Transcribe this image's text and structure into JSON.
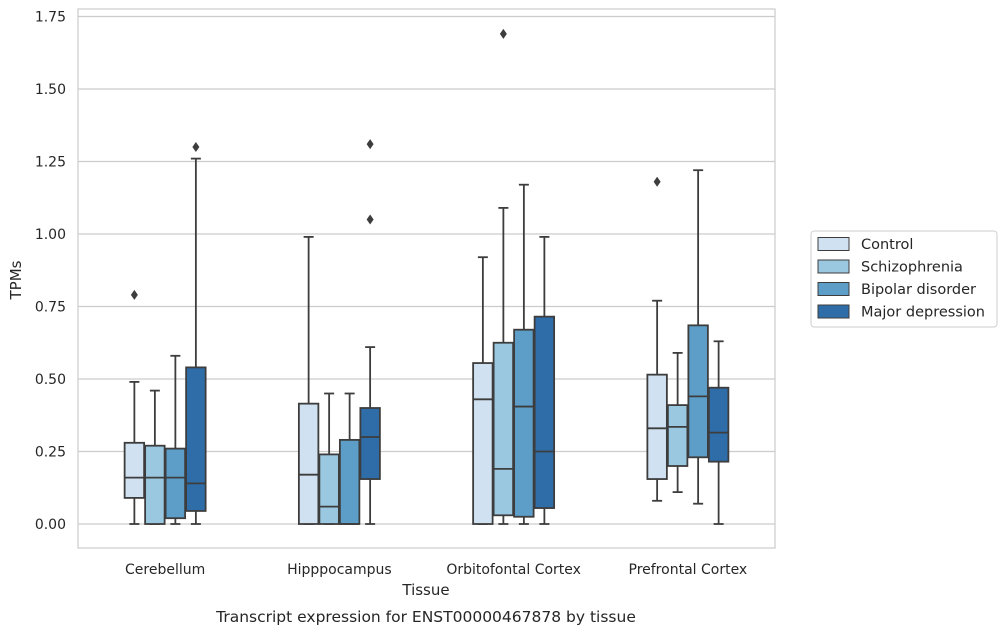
{
  "chart_data": {
    "type": "box",
    "title": "",
    "xlabel": "Tissue",
    "ylabel": "TPMs",
    "caption": "Transcript expression for ENST00000467878 by tissue",
    "ylim": [
      -0.08,
      1.78
    ],
    "yticks": [
      "0.00",
      "0.25",
      "0.50",
      "0.75",
      "1.00",
      "1.25",
      "1.50",
      "1.75"
    ],
    "grid": "horizontal",
    "legend_position": "right",
    "categories": [
      "Cerebellum",
      "Hipppocampus",
      "Orbitofontal Cortex",
      "Prefrontal Cortex"
    ],
    "series": [
      {
        "name": "Control",
        "color": "#d0e1f2",
        "boxes": [
          {
            "whislo": 0.0,
            "q1": 0.09,
            "med": 0.16,
            "q3": 0.28,
            "whishi": 0.49,
            "fliers": [
              0.79
            ]
          },
          {
            "whislo": 0.0,
            "q1": 0.0,
            "med": 0.17,
            "q3": 0.415,
            "whishi": 0.99,
            "fliers": []
          },
          {
            "whislo": 0.0,
            "q1": 0.0,
            "med": 0.43,
            "q3": 0.555,
            "whishi": 0.92,
            "fliers": []
          },
          {
            "whislo": 0.08,
            "q1": 0.155,
            "med": 0.33,
            "q3": 0.515,
            "whishi": 0.77,
            "fliers": [
              1.18
            ]
          }
        ]
      },
      {
        "name": "Schizophrenia",
        "color": "#9ac8e0",
        "boxes": [
          {
            "whislo": 0.0,
            "q1": 0.0,
            "med": 0.16,
            "q3": 0.27,
            "whishi": 0.46,
            "fliers": []
          },
          {
            "whislo": 0.0,
            "q1": 0.0,
            "med": 0.06,
            "q3": 0.24,
            "whishi": 0.45,
            "fliers": []
          },
          {
            "whislo": 0.0,
            "q1": 0.03,
            "med": 0.19,
            "q3": 0.625,
            "whishi": 1.09,
            "fliers": [
              1.69
            ]
          },
          {
            "whislo": 0.11,
            "q1": 0.2,
            "med": 0.335,
            "q3": 0.41,
            "whishi": 0.59,
            "fliers": []
          }
        ]
      },
      {
        "name": "Bipolar disorder",
        "color": "#5d9ec9",
        "boxes": [
          {
            "whislo": 0.0,
            "q1": 0.02,
            "med": 0.16,
            "q3": 0.26,
            "whishi": 0.58,
            "fliers": []
          },
          {
            "whislo": 0.0,
            "q1": 0.0,
            "med": 0.0,
            "q3": 0.29,
            "whishi": 0.45,
            "fliers": []
          },
          {
            "whislo": 0.0,
            "q1": 0.025,
            "med": 0.405,
            "q3": 0.67,
            "whishi": 1.17,
            "fliers": []
          },
          {
            "whislo": 0.07,
            "q1": 0.23,
            "med": 0.44,
            "q3": 0.685,
            "whishi": 1.22,
            "fliers": []
          }
        ]
      },
      {
        "name": "Major depression",
        "color": "#2f6da9",
        "boxes": [
          {
            "whislo": 0.0,
            "q1": 0.045,
            "med": 0.14,
            "q3": 0.54,
            "whishi": 1.26,
            "fliers": [
              1.3
            ]
          },
          {
            "whislo": 0.0,
            "q1": 0.155,
            "med": 0.3,
            "q3": 0.4,
            "whishi": 0.61,
            "fliers": [
              1.05,
              1.31
            ]
          },
          {
            "whislo": 0.0,
            "q1": 0.055,
            "med": 0.25,
            "q3": 0.715,
            "whishi": 0.99,
            "fliers": []
          },
          {
            "whislo": 0.0,
            "q1": 0.215,
            "med": 0.315,
            "q3": 0.47,
            "whishi": 0.63,
            "fliers": []
          }
        ]
      }
    ]
  }
}
